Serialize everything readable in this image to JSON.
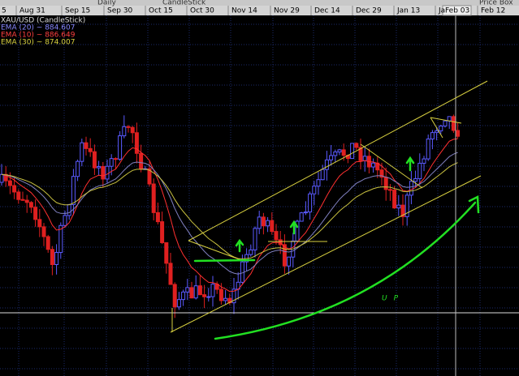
{
  "toolbar": {
    "items": [
      "Daily",
      "CandleStick",
      "Price Box"
    ]
  },
  "date_axis": {
    "labels": [
      "5",
      "Aug 31",
      "Sep 15",
      "Sep 30",
      "Oct 15",
      "Oct 30",
      "Nov 14",
      "Nov 29",
      "Dec 14",
      "Dec 29",
      "Jan 13",
      "Ja",
      "Feb 12"
    ]
  },
  "crosshair_label": "Feb 03",
  "legend": [
    "XAU/USD (CandleStick)",
    "EMA (20) ~ 884.607",
    "EMA (10) ~ 886.649",
    "EMA (30) ~ 874.007"
  ],
  "annotation": "UP"
}
